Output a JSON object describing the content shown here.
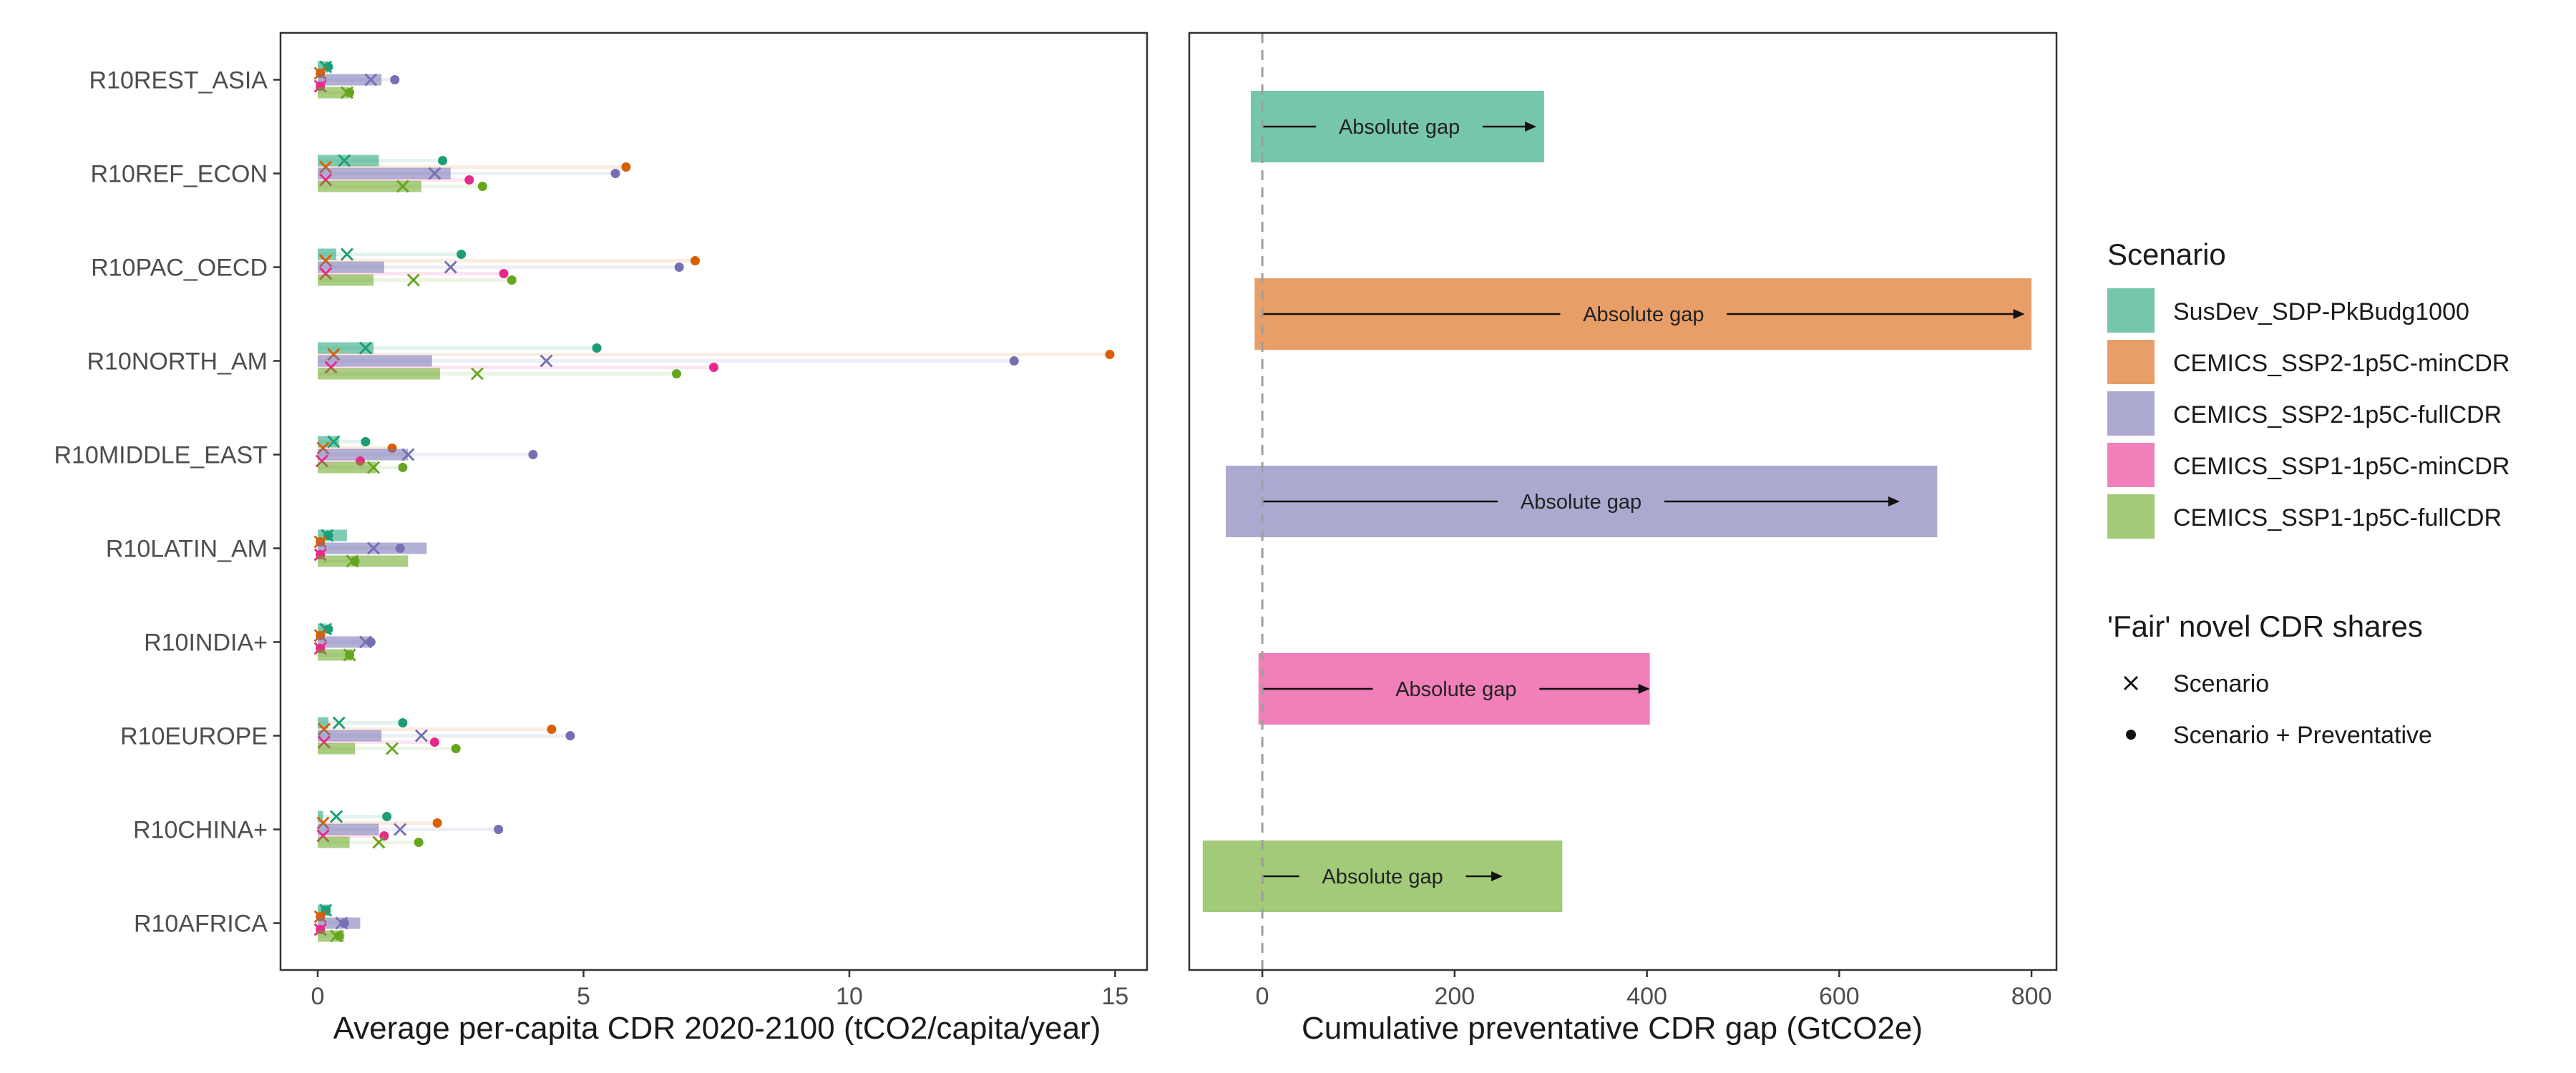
{
  "colors": {
    "SusDev_SDP-PkBudg1000": "#1b9e77",
    "CEMICS_SSP2-1p5C-minCDR": "#d95f02",
    "CEMICS_SSP2-1p5C-fullCDR": "#7570b3",
    "CEMICS_SSP1-1p5C-minCDR": "#e7298a",
    "CEMICS_SSP1-1p5C-fullCDR": "#66a61e"
  },
  "legend": {
    "scenario_title": "Scenario",
    "scenario_items": [
      "SusDev_SDP-PkBudg1000",
      "CEMICS_SSP2-1p5C-minCDR",
      "CEMICS_SSP2-1p5C-fullCDR",
      "CEMICS_SSP1-1p5C-minCDR",
      "CEMICS_SSP1-1p5C-fullCDR"
    ],
    "shares_title": "'Fair' novel CDR shares",
    "shares_items": [
      {
        "label": "Scenario",
        "icon": "cross-icon"
      },
      {
        "label": "Scenario + Preventative",
        "icon": "dot-icon"
      }
    ]
  },
  "chart_data": [
    {
      "type": "bar",
      "orientation": "horizontal",
      "xlabel": "Average per-capita CDR 2020-2100 (tCO2/capita/year)",
      "ylabel": "",
      "xlim": [
        -0.7,
        15.6
      ],
      "x_ticks": [
        0,
        5,
        10,
        15
      ],
      "grid": false,
      "legend_position": "right",
      "categories": [
        "R10REST_ASIA",
        "R10REF_ECON",
        "R10PAC_OECD",
        "R10NORTH_AM",
        "R10MIDDLE_EAST",
        "R10LATIN_AM",
        "R10INDIA+",
        "R10EUROPE",
        "R10CHINA+",
        "R10AFRICA"
      ],
      "series": [
        {
          "name": "SusDev_SDP-PkBudg1000",
          "bar": [
            0.2,
            1.15,
            0.35,
            1.05,
            0.4,
            0.55,
            0.15,
            0.2,
            0.1,
            0.25
          ],
          "scenario": [
            0.15,
            0.5,
            0.55,
            0.9,
            0.3,
            0.18,
            0.15,
            0.4,
            0.35,
            0.15
          ],
          "preventative": [
            0.2,
            2.35,
            2.7,
            5.25,
            0.9,
            0.2,
            0.2,
            1.6,
            1.3,
            0.15
          ]
        },
        {
          "name": "CEMICS_SSP2-1p5C-minCDR",
          "bar": [
            0.0,
            0.0,
            0.0,
            0.0,
            0.0,
            0.0,
            0.0,
            0.0,
            0.0,
            0.0
          ],
          "scenario": [
            0.05,
            0.15,
            0.15,
            0.3,
            0.1,
            0.05,
            0.05,
            0.12,
            0.1,
            0.05
          ],
          "preventative": [
            0.05,
            5.8,
            7.1,
            14.9,
            1.4,
            0.05,
            0.05,
            4.4,
            2.25,
            0.05
          ]
        },
        {
          "name": "CEMICS_SSP2-1p5C-fullCDR",
          "bar": [
            1.2,
            2.5,
            1.25,
            2.15,
            1.7,
            2.05,
            1.0,
            1.2,
            1.15,
            0.8
          ],
          "scenario": [
            1.0,
            2.2,
            2.5,
            4.3,
            1.7,
            1.05,
            0.9,
            1.95,
            1.55,
            0.45
          ],
          "preventative": [
            1.45,
            5.6,
            6.8,
            13.1,
            4.05,
            1.55,
            1.0,
            4.75,
            3.4,
            0.5
          ]
        },
        {
          "name": "CEMICS_SSP1-1p5C-minCDR",
          "bar": [
            0.0,
            0.0,
            0.0,
            0.0,
            0.0,
            0.0,
            0.0,
            0.0,
            0.0,
            0.0
          ],
          "scenario": [
            0.05,
            0.15,
            0.15,
            0.25,
            0.08,
            0.05,
            0.05,
            0.12,
            0.1,
            0.05
          ],
          "preventative": [
            0.05,
            2.85,
            3.5,
            7.45,
            0.8,
            0.05,
            0.05,
            2.2,
            1.25,
            0.05
          ]
        },
        {
          "name": "CEMICS_SSP1-1p5C-fullCDR",
          "bar": [
            0.6,
            1.95,
            1.05,
            2.3,
            1.1,
            1.7,
            0.65,
            0.7,
            0.6,
            0.5
          ],
          "scenario": [
            0.55,
            1.6,
            1.8,
            3.0,
            1.05,
            0.65,
            0.6,
            1.4,
            1.15,
            0.35
          ],
          "preventative": [
            0.6,
            3.1,
            3.65,
            6.75,
            1.6,
            0.7,
            0.6,
            2.6,
            1.9,
            0.4
          ]
        }
      ]
    },
    {
      "type": "bar",
      "orientation": "horizontal",
      "xlabel": "Cumulative preventative CDR gap (GtCO2e)",
      "ylabel": "",
      "xlim": [
        -76,
        826
      ],
      "x_ticks": [
        0,
        200,
        400,
        600,
        800
      ],
      "grid": false,
      "reference_line": 0,
      "legend_position": "right",
      "categories": [
        "SusDev_SDP-PkBudg1000",
        "CEMICS_SSP2-1p5C-minCDR",
        "CEMICS_SSP2-1p5C-fullCDR",
        "CEMICS_SSP1-1p5C-minCDR",
        "CEMICS_SSP1-1p5C-fullCDR"
      ],
      "bar_start": [
        -12,
        -8,
        -38,
        -4,
        -62
      ],
      "bar_end": [
        293,
        800,
        702,
        403,
        312
      ],
      "gap_arrow_end": [
        285,
        793,
        663,
        403,
        250
      ],
      "annotation": "Absolute gap"
    }
  ]
}
